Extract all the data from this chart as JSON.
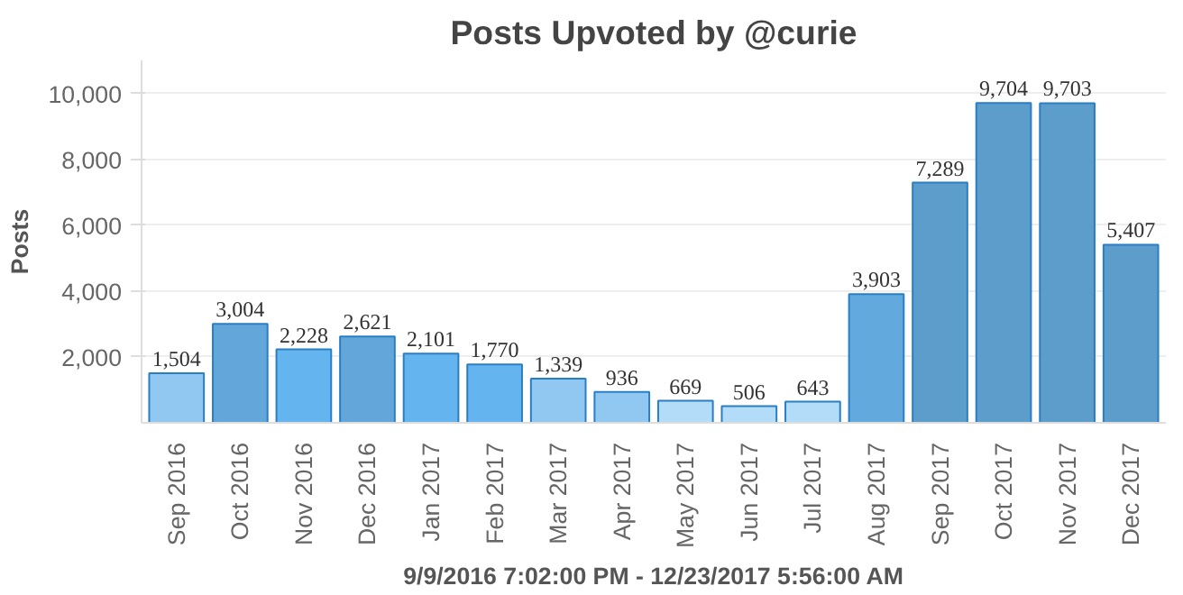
{
  "chart_data": {
    "type": "bar",
    "title": "Posts Upvoted by @curie",
    "xlabel": "9/9/2016 7:02:00 PM - 12/23/2017 5:56:00 AM",
    "ylabel": "Posts",
    "categories": [
      "Sep 2016",
      "Oct 2016",
      "Nov 2016",
      "Dec 2016",
      "Jan 2017",
      "Feb 2017",
      "Mar 2017",
      "Apr 2017",
      "May 2017",
      "Jun 2017",
      "Jul 2017",
      "Aug 2017",
      "Sep 2017",
      "Oct 2017",
      "Nov 2017",
      "Dec 2017"
    ],
    "values": [
      1504,
      3004,
      2228,
      2621,
      2101,
      1770,
      1339,
      936,
      669,
      506,
      643,
      3903,
      7289,
      9704,
      9703,
      5407
    ],
    "colors": [
      "#90c8f2",
      "#62a6da",
      "#64b4f0",
      "#62a6da",
      "#64b4f0",
      "#64b4f0",
      "#90c8f2",
      "#90c8f2",
      "#b3dcf9",
      "#b3dcf9",
      "#b3dcf9",
      "#62a9de",
      "#5d9dcb",
      "#5d9dcb",
      "#5d9dcb",
      "#5d9dcb"
    ],
    "ylim": [
      0,
      11000
    ],
    "yticks": [
      {
        "value": 2000,
        "label": "2,000"
      },
      {
        "value": 4000,
        "label": "4,000"
      },
      {
        "value": 6000,
        "label": "6,000"
      },
      {
        "value": 8000,
        "label": "8,000"
      },
      {
        "value": 10000,
        "label": "10,000"
      }
    ],
    "value_labels": [
      "1,504",
      "3,004",
      "2,228",
      "2,621",
      "2,101",
      "1,770",
      "1,339",
      "936",
      "669",
      "506",
      "643",
      "3,903",
      "7,289",
      "9,704",
      "9,703",
      "5,407"
    ],
    "grid": "y"
  }
}
